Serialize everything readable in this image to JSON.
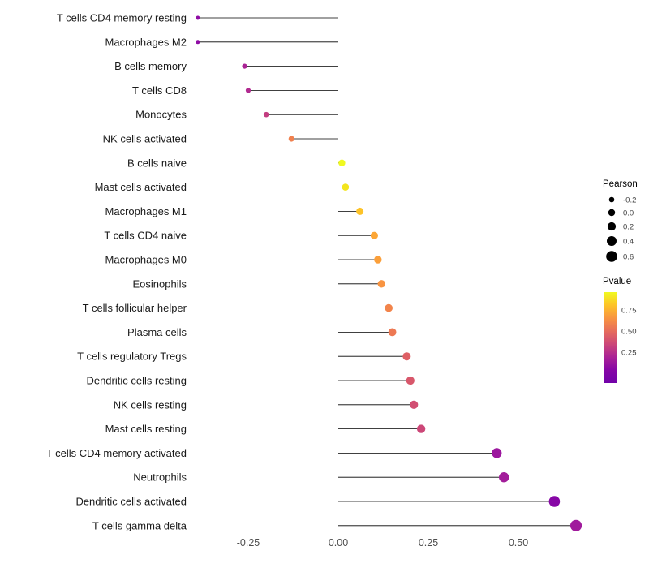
{
  "chart_data": {
    "type": "scatter",
    "subtype": "lollipop",
    "title": "",
    "xlabel": "",
    "ylabel": "",
    "xlim": [
      -0.45,
      0.72
    ],
    "grid": false,
    "x_ticks": [
      -0.25,
      0.0,
      0.25,
      0.5
    ],
    "x_tick_labels": [
      "-0.25",
      "0.00",
      "0.25",
      "0.50"
    ],
    "points": [
      {
        "label": "T cells CD4 memory resting",
        "pearson": -0.39,
        "color": "#8f0da4"
      },
      {
        "label": "Macrophages M2",
        "pearson": -0.39,
        "color": "#8f0da4"
      },
      {
        "label": "B cells memory",
        "pearson": -0.26,
        "color": "#aa2395"
      },
      {
        "label": "T cells CD8",
        "pearson": -0.25,
        "color": "#b12a90"
      },
      {
        "label": "Monocytes",
        "pearson": -0.2,
        "color": "#c33d80"
      },
      {
        "label": "NK cells activated",
        "pearson": -0.13,
        "color": "#f0804e"
      },
      {
        "label": "B cells naive",
        "pearson": 0.01,
        "color": "#f0f921"
      },
      {
        "label": "Mast cells activated",
        "pearson": 0.02,
        "color": "#f3e51e"
      },
      {
        "label": "Macrophages M1",
        "pearson": 0.06,
        "color": "#fdc328"
      },
      {
        "label": "T cells CD4 naive",
        "pearson": 0.1,
        "color": "#fca636"
      },
      {
        "label": "Macrophages M0",
        "pearson": 0.11,
        "color": "#fb9f3a"
      },
      {
        "label": "Eosinophils",
        "pearson": 0.12,
        "color": "#f89441"
      },
      {
        "label": "T cells follicular helper",
        "pearson": 0.14,
        "color": "#f2844b"
      },
      {
        "label": "Plasma cells",
        "pearson": 0.15,
        "color": "#ed7953"
      },
      {
        "label": "T cells regulatory Tregs",
        "pearson": 0.19,
        "color": "#de5f65"
      },
      {
        "label": "Dendritic cells resting",
        "pearson": 0.2,
        "color": "#d8576b"
      },
      {
        "label": "NK cells resting",
        "pearson": 0.21,
        "color": "#d14e72"
      },
      {
        "label": "Mast cells resting",
        "pearson": 0.23,
        "color": "#cc4778"
      },
      {
        "label": "T cells CD4 memory activated",
        "pearson": 0.44,
        "color": "#9c179e"
      },
      {
        "label": "Neutrophils",
        "pearson": 0.46,
        "color": "#a21d9a"
      },
      {
        "label": "Dendritic cells activated",
        "pearson": 0.6,
        "color": "#8707a6"
      },
      {
        "label": "T cells gamma delta",
        "pearson": 0.66,
        "color": "#a01a9c"
      }
    ],
    "legends": {
      "size": {
        "title": "Pearson",
        "entries": [
          {
            "label": "-0.2",
            "value": -0.2
          },
          {
            "label": "0.0",
            "value": 0.0
          },
          {
            "label": "0.2",
            "value": 0.2
          },
          {
            "label": "0.4",
            "value": 0.4
          },
          {
            "label": "0.6",
            "value": 0.6
          }
        ],
        "dot_color": "#000000"
      },
      "color": {
        "title": "Pvalue",
        "ticks": [
          "0.75",
          "0.50",
          "0.25"
        ],
        "gradient": [
          "#f0f921",
          "#fdc328",
          "#f89441",
          "#e66c5c",
          "#cc4778",
          "#aa2395",
          "#8606a6",
          "#7102a8"
        ]
      }
    }
  }
}
